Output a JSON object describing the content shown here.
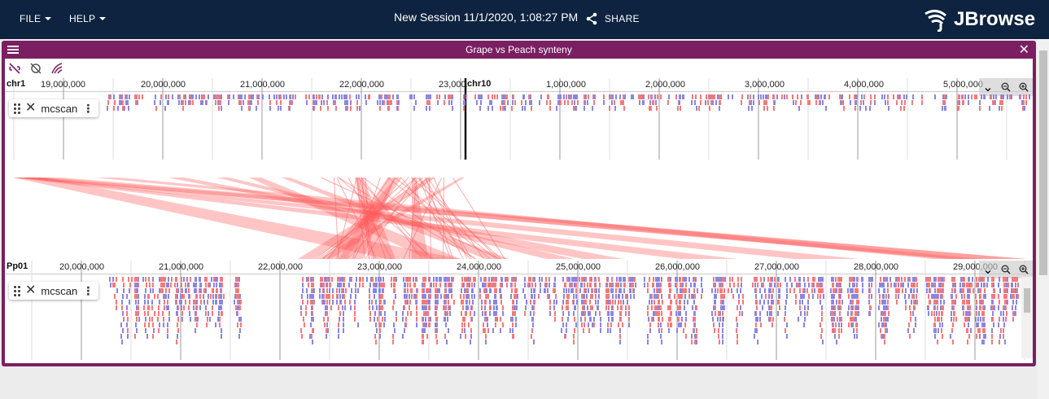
{
  "menu": {
    "file": "FILE",
    "help": "HELP"
  },
  "session": {
    "title": "New Session 11/1/2020, 1:08:27 PM",
    "share": "SHARE"
  },
  "logo": {
    "text": "JBrowse"
  },
  "view": {
    "title": "Grape vs Peach synteny"
  },
  "top_track": {
    "refs": [
      {
        "name": "chr1"
      },
      {
        "name": "chr10"
      }
    ],
    "ticks": [
      "19,000,000",
      "20,000,000",
      "21,000,000",
      "22,000,000",
      "23,000,000",
      "1,000,000",
      "2,000,000",
      "3,000,000",
      "4,000,000",
      "5,000,000"
    ],
    "track_name": "mcscan"
  },
  "bottom_track": {
    "refs": [
      {
        "name": "Pp01"
      }
    ],
    "ticks": [
      "20,000,000",
      "21,000,000",
      "22,000,000",
      "23,000,000",
      "24,000,000",
      "25,000,000",
      "26,000,000",
      "27,000,000",
      "28,000,000",
      "29,000,000"
    ],
    "track_name": "mcscan"
  },
  "colors": {
    "appbar": "#0d233f",
    "view_frame": "#7a1f62",
    "forward": "#f47a7a",
    "reverse": "#8a86e0",
    "synteny": "#ff5a5a"
  }
}
